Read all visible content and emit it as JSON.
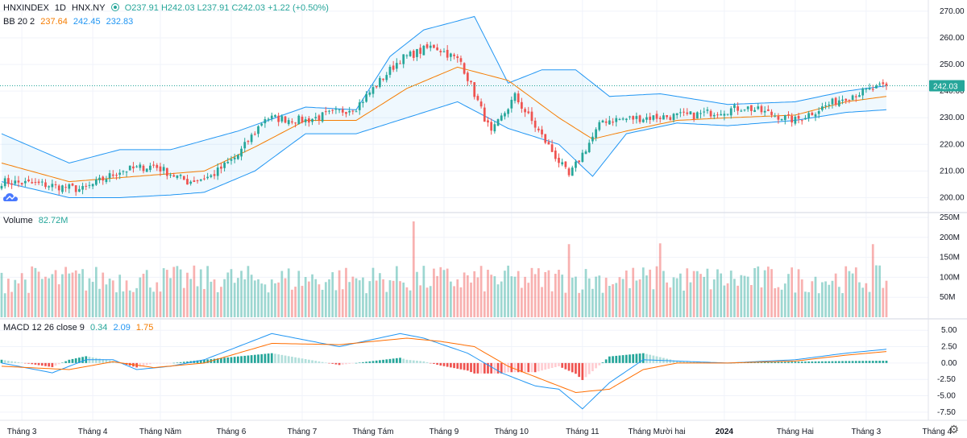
{
  "header": {
    "symbol": "HNXINDEX",
    "interval": "1D",
    "exchange": "HNX.NY",
    "ohlc": "O237.91 H242.03 L237.91 C242.03 +1.22 (+0.50%)"
  },
  "bb_legend": {
    "label": "BB 20 2",
    "basis": "237.64",
    "upper": "242.45",
    "lower": "232.83"
  },
  "volume_legend": {
    "label": "Volume",
    "value": "82.72M"
  },
  "macd_legend": {
    "label": "MACD 12 26 close 9",
    "hist": "0.34",
    "macd": "2.09",
    "signal": "1.75"
  },
  "last_price_label": "242.03",
  "colors": {
    "up": "#26a69a",
    "down": "#ef5350",
    "basis": "#f57c00",
    "band": "#2196f3"
  },
  "chart_data": [
    {
      "type": "candlestick",
      "title": "HNXINDEX 1D",
      "ylim": [
        195,
        273
      ],
      "yticks": [
        "270.00",
        "260.00",
        "250.00",
        "240.00",
        "230.00",
        "220.00",
        "210.00",
        "200.00"
      ],
      "xticks": [
        "Tháng 3",
        "Tháng 4",
        "Tháng Năm",
        "Tháng 6",
        "Tháng 7",
        "Tháng Tám",
        "Tháng 9",
        "Tháng 10",
        "Tháng 11",
        "Tháng Mười hai",
        "2024",
        "Tháng Hai",
        "Tháng 3",
        "Tháng 4"
      ],
      "close_anchors": [
        [
          0,
          206
        ],
        [
          12,
          205
        ],
        [
          24,
          203
        ],
        [
          35,
          210
        ],
        [
          45,
          212
        ],
        [
          55,
          206
        ],
        [
          62,
          208
        ],
        [
          70,
          216
        ],
        [
          78,
          230
        ],
        [
          90,
          229
        ],
        [
          105,
          234
        ],
        [
          118,
          252
        ],
        [
          128,
          257
        ],
        [
          136,
          251
        ],
        [
          145,
          224
        ],
        [
          152,
          238
        ],
        [
          168,
          208
        ],
        [
          178,
          229
        ],
        [
          190,
          230
        ],
        [
          205,
          231
        ],
        [
          220,
          234
        ],
        [
          235,
          229
        ],
        [
          250,
          238
        ],
        [
          262,
          242
        ]
      ],
      "series": [
        {
          "name": "Bollinger upper",
          "anchors": [
            [
              0,
              224
            ],
            [
              20,
              213
            ],
            [
              35,
              218
            ],
            [
              50,
              218
            ],
            [
              70,
              225
            ],
            [
              90,
              234
            ],
            [
              105,
              233
            ],
            [
              115,
              253
            ],
            [
              125,
              263
            ],
            [
              140,
              268
            ],
            [
              150,
              243
            ],
            [
              160,
              248
            ],
            [
              170,
              248
            ],
            [
              180,
              238
            ],
            [
              195,
              239
            ],
            [
              215,
              235
            ],
            [
              235,
              236
            ],
            [
              250,
              240
            ],
            [
              262,
              242
            ]
          ]
        },
        {
          "name": "Bollinger basis",
          "anchors": [
            [
              0,
              213
            ],
            [
              20,
              206
            ],
            [
              40,
              208
            ],
            [
              60,
              210
            ],
            [
              75,
              219
            ],
            [
              90,
              229
            ],
            [
              105,
              229
            ],
            [
              120,
              241
            ],
            [
              135,
              249
            ],
            [
              150,
              244
            ],
            [
              165,
              230
            ],
            [
              175,
              222
            ],
            [
              185,
              225
            ],
            [
              200,
              229
            ],
            [
              215,
              230
            ],
            [
              235,
              231
            ],
            [
              250,
              236
            ],
            [
              262,
              238
            ]
          ]
        },
        {
          "name": "Bollinger lower",
          "anchors": [
            [
              0,
              206
            ],
            [
              20,
              200
            ],
            [
              35,
              200
            ],
            [
              50,
              201
            ],
            [
              60,
              202
            ],
            [
              75,
              210
            ],
            [
              90,
              224
            ],
            [
              105,
              224
            ],
            [
              120,
              230
            ],
            [
              135,
              236
            ],
            [
              150,
              226
            ],
            [
              165,
              220
            ],
            [
              175,
              208
            ],
            [
              185,
              224
            ],
            [
              200,
              228
            ],
            [
              215,
              227
            ],
            [
              235,
              229
            ],
            [
              250,
              232
            ],
            [
              262,
              233
            ]
          ]
        }
      ]
    },
    {
      "type": "bar",
      "title": "Volume",
      "ylim": [
        0,
        250
      ],
      "yticks": [
        "250M",
        "200M",
        "150M",
        "100M",
        "50M"
      ],
      "notable_values_m": [
        {
          "x": 122,
          "value": 240
        },
        {
          "x": 168,
          "value": 183
        },
        {
          "x": 195,
          "value": 185
        },
        {
          "x": 258,
          "value": 183
        }
      ],
      "typical_range_m": [
        60,
        130
      ]
    },
    {
      "type": "line",
      "title": "MACD 12 26 close 9",
      "ylim": [
        -8.5,
        6.5
      ],
      "yticks": [
        "5.00",
        "2.50",
        "0.00",
        "-2.50",
        "-5.00",
        "-7.50"
      ],
      "series": [
        {
          "name": "MACD",
          "anchors": [
            [
              0,
              0
            ],
            [
              15,
              -1.5
            ],
            [
              25,
              0.5
            ],
            [
              33,
              0.5
            ],
            [
              40,
              -1
            ],
            [
              50,
              -0.5
            ],
            [
              60,
              0.5
            ],
            [
              80,
              4.5
            ],
            [
              100,
              2.5
            ],
            [
              118,
              4.5
            ],
            [
              125,
              3.8
            ],
            [
              138,
              1.5
            ],
            [
              148,
              -1.5
            ],
            [
              158,
              -3.5
            ],
            [
              165,
              -4
            ],
            [
              172,
              -7
            ],
            [
              180,
              -3
            ],
            [
              190,
              0.5
            ],
            [
              200,
              0.3
            ],
            [
              215,
              0
            ],
            [
              235,
              0.5
            ],
            [
              250,
              1.5
            ],
            [
              262,
              2.1
            ]
          ]
        },
        {
          "name": "Signal",
          "anchors": [
            [
              0,
              -0.5
            ],
            [
              20,
              -1
            ],
            [
              33,
              0.2
            ],
            [
              45,
              -0.7
            ],
            [
              60,
              0
            ],
            [
              80,
              3
            ],
            [
              100,
              2.8
            ],
            [
              120,
              3.8
            ],
            [
              130,
              3.3
            ],
            [
              140,
              2.5
            ],
            [
              150,
              -0.5
            ],
            [
              160,
              -2.5
            ],
            [
              170,
              -4.5
            ],
            [
              180,
              -4
            ],
            [
              190,
              -1
            ],
            [
              200,
              0
            ],
            [
              215,
              0
            ],
            [
              235,
              0.3
            ],
            [
              250,
              1.2
            ],
            [
              262,
              1.75
            ]
          ]
        }
      ]
    }
  ]
}
